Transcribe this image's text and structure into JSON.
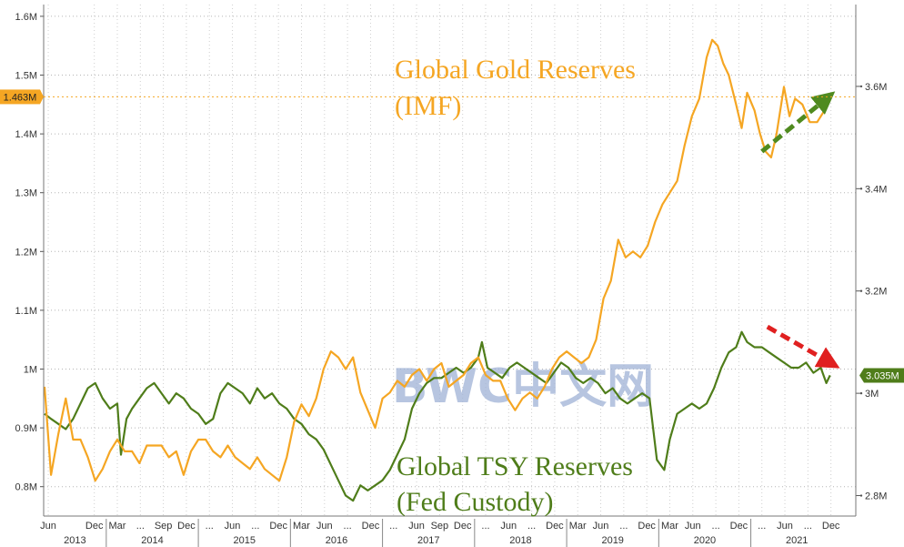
{
  "chart_data": {
    "type": "line",
    "title": "",
    "annotations": {
      "gold": [
        "Global Gold Reserves",
        "(IMF)"
      ],
      "tsy": [
        "Global TSY Reserves",
        "(Fed Custody)"
      ],
      "watermark": "BWC中文网"
    },
    "y_left": {
      "ylim": [
        0.75,
        1.62
      ],
      "ticks": [
        0.8,
        0.9,
        1.0,
        1.1,
        1.2,
        1.3,
        1.4,
        1.5,
        1.6
      ],
      "tick_labels": [
        "0.8M",
        "0.9M",
        "1M",
        "1.1M",
        "1.2M",
        "1.3M",
        "1.4M",
        "1.5M",
        "1.6M"
      ]
    },
    "y_right": {
      "ylim": [
        2.76,
        3.76
      ],
      "ticks": [
        2.8,
        3.0,
        3.2,
        3.4,
        3.6
      ],
      "tick_labels": [
        "2.8M",
        "3M",
        "3.2M",
        "3.4M",
        "3.6M"
      ]
    },
    "x": {
      "xlim": [
        2013.32,
        2022.14
      ],
      "month_ticks": [
        {
          "t": 2013.37,
          "label": "Jun"
        },
        {
          "t": 2013.87,
          "label": "Dec"
        },
        {
          "t": 2014.12,
          "label": "Mar"
        },
        {
          "t": 2014.37,
          "label": "..."
        },
        {
          "t": 2014.62,
          "label": "Sep"
        },
        {
          "t": 2014.87,
          "label": "Dec"
        },
        {
          "t": 2015.12,
          "label": "..."
        },
        {
          "t": 2015.37,
          "label": "Jun"
        },
        {
          "t": 2015.62,
          "label": "..."
        },
        {
          "t": 2015.87,
          "label": "Dec"
        },
        {
          "t": 2016.12,
          "label": "Mar"
        },
        {
          "t": 2016.37,
          "label": "Jun"
        },
        {
          "t": 2016.62,
          "label": "..."
        },
        {
          "t": 2016.87,
          "label": "Dec"
        },
        {
          "t": 2017.12,
          "label": "..."
        },
        {
          "t": 2017.37,
          "label": "Jun"
        },
        {
          "t": 2017.62,
          "label": "Sep"
        },
        {
          "t": 2017.87,
          "label": "Dec"
        },
        {
          "t": 2018.12,
          "label": "..."
        },
        {
          "t": 2018.37,
          "label": "Jun"
        },
        {
          "t": 2018.62,
          "label": "..."
        },
        {
          "t": 2018.87,
          "label": "Dec"
        },
        {
          "t": 2019.12,
          "label": "Mar"
        },
        {
          "t": 2019.37,
          "label": "Jun"
        },
        {
          "t": 2019.62,
          "label": "..."
        },
        {
          "t": 2019.87,
          "label": "Dec"
        },
        {
          "t": 2020.12,
          "label": "Mar"
        },
        {
          "t": 2020.37,
          "label": "Jun"
        },
        {
          "t": 2020.62,
          "label": "..."
        },
        {
          "t": 2020.87,
          "label": "Dec"
        },
        {
          "t": 2021.12,
          "label": "..."
        },
        {
          "t": 2021.37,
          "label": "Jun"
        },
        {
          "t": 2021.62,
          "label": "..."
        },
        {
          "t": 2021.87,
          "label": "Dec"
        }
      ],
      "years": [
        "2013",
        "2014",
        "2015",
        "2016",
        "2017",
        "2018",
        "2019",
        "2020",
        "2021"
      ]
    },
    "series": [
      {
        "name": "Global Gold Reserves (IMF)",
        "axis": "left",
        "color": "#f5a623",
        "last_value_label": "1.463M",
        "points": [
          [
            2013.33,
            0.97
          ],
          [
            2013.4,
            0.82
          ],
          [
            2013.48,
            0.89
          ],
          [
            2013.56,
            0.95
          ],
          [
            2013.64,
            0.88
          ],
          [
            2013.72,
            0.88
          ],
          [
            2013.8,
            0.85
          ],
          [
            2013.88,
            0.81
          ],
          [
            2013.96,
            0.83
          ],
          [
            2014.04,
            0.86
          ],
          [
            2014.12,
            0.88
          ],
          [
            2014.2,
            0.86
          ],
          [
            2014.28,
            0.86
          ],
          [
            2014.36,
            0.84
          ],
          [
            2014.44,
            0.87
          ],
          [
            2014.52,
            0.87
          ],
          [
            2014.6,
            0.87
          ],
          [
            2014.68,
            0.85
          ],
          [
            2014.76,
            0.86
          ],
          [
            2014.84,
            0.82
          ],
          [
            2014.92,
            0.86
          ],
          [
            2015.0,
            0.88
          ],
          [
            2015.08,
            0.88
          ],
          [
            2015.16,
            0.86
          ],
          [
            2015.24,
            0.85
          ],
          [
            2015.32,
            0.87
          ],
          [
            2015.4,
            0.85
          ],
          [
            2015.48,
            0.84
          ],
          [
            2015.56,
            0.83
          ],
          [
            2015.64,
            0.85
          ],
          [
            2015.72,
            0.83
          ],
          [
            2015.8,
            0.82
          ],
          [
            2015.88,
            0.81
          ],
          [
            2015.96,
            0.85
          ],
          [
            2016.04,
            0.91
          ],
          [
            2016.12,
            0.94
          ],
          [
            2016.2,
            0.92
          ],
          [
            2016.28,
            0.95
          ],
          [
            2016.36,
            1.0
          ],
          [
            2016.44,
            1.03
          ],
          [
            2016.52,
            1.02
          ],
          [
            2016.6,
            1.0
          ],
          [
            2016.68,
            1.02
          ],
          [
            2016.76,
            0.96
          ],
          [
            2016.84,
            0.93
          ],
          [
            2016.92,
            0.9
          ],
          [
            2017.0,
            0.95
          ],
          [
            2017.08,
            0.96
          ],
          [
            2017.16,
            0.98
          ],
          [
            2017.24,
            0.97
          ],
          [
            2017.32,
            0.99
          ],
          [
            2017.4,
            1.0
          ],
          [
            2017.48,
            0.98
          ],
          [
            2017.56,
            1.0
          ],
          [
            2017.64,
            1.01
          ],
          [
            2017.72,
            0.97
          ],
          [
            2017.8,
            0.98
          ],
          [
            2017.88,
            0.99
          ],
          [
            2017.96,
            1.01
          ],
          [
            2018.04,
            1.02
          ],
          [
            2018.12,
            0.99
          ],
          [
            2018.2,
            0.98
          ],
          [
            2018.28,
            0.98
          ],
          [
            2018.36,
            0.95
          ],
          [
            2018.44,
            0.93
          ],
          [
            2018.52,
            0.95
          ],
          [
            2018.6,
            0.96
          ],
          [
            2018.68,
            0.95
          ],
          [
            2018.76,
            0.97
          ],
          [
            2018.84,
            1.0
          ],
          [
            2018.92,
            1.02
          ],
          [
            2019.0,
            1.03
          ],
          [
            2019.08,
            1.02
          ],
          [
            2019.16,
            1.01
          ],
          [
            2019.24,
            1.02
          ],
          [
            2019.32,
            1.05
          ],
          [
            2019.4,
            1.12
          ],
          [
            2019.48,
            1.15
          ],
          [
            2019.56,
            1.22
          ],
          [
            2019.64,
            1.19
          ],
          [
            2019.72,
            1.2
          ],
          [
            2019.8,
            1.19
          ],
          [
            2019.88,
            1.21
          ],
          [
            2019.96,
            1.25
          ],
          [
            2020.04,
            1.28
          ],
          [
            2020.12,
            1.3
          ],
          [
            2020.2,
            1.32
          ],
          [
            2020.28,
            1.38
          ],
          [
            2020.36,
            1.43
          ],
          [
            2020.44,
            1.46
          ],
          [
            2020.52,
            1.53
          ],
          [
            2020.58,
            1.56
          ],
          [
            2020.64,
            1.55
          ],
          [
            2020.7,
            1.52
          ],
          [
            2020.76,
            1.5
          ],
          [
            2020.84,
            1.45
          ],
          [
            2020.9,
            1.41
          ],
          [
            2020.96,
            1.47
          ],
          [
            2021.04,
            1.44
          ],
          [
            2021.1,
            1.4
          ],
          [
            2021.16,
            1.37
          ],
          [
            2021.22,
            1.36
          ],
          [
            2021.28,
            1.4
          ],
          [
            2021.36,
            1.48
          ],
          [
            2021.42,
            1.43
          ],
          [
            2021.48,
            1.46
          ],
          [
            2021.56,
            1.45
          ],
          [
            2021.64,
            1.42
          ],
          [
            2021.72,
            1.42
          ],
          [
            2021.8,
            1.44
          ],
          [
            2021.86,
            1.463
          ]
        ]
      },
      {
        "name": "Global TSY Reserves (Fed Custody)",
        "axis": "right",
        "color": "#4f7d1a",
        "last_value_label": "3.035M",
        "points": [
          [
            2013.33,
            2.96
          ],
          [
            2013.4,
            2.95
          ],
          [
            2013.48,
            2.94
          ],
          [
            2013.56,
            2.93
          ],
          [
            2013.64,
            2.95
          ],
          [
            2013.72,
            2.98
          ],
          [
            2013.8,
            3.01
          ],
          [
            2013.88,
            3.02
          ],
          [
            2013.96,
            2.99
          ],
          [
            2014.04,
            2.97
          ],
          [
            2014.12,
            2.98
          ],
          [
            2014.16,
            2.88
          ],
          [
            2014.22,
            2.95
          ],
          [
            2014.28,
            2.97
          ],
          [
            2014.36,
            2.99
          ],
          [
            2014.44,
            3.01
          ],
          [
            2014.52,
            3.02
          ],
          [
            2014.6,
            3.0
          ],
          [
            2014.68,
            2.98
          ],
          [
            2014.76,
            3.0
          ],
          [
            2014.84,
            2.99
          ],
          [
            2014.92,
            2.97
          ],
          [
            2015.0,
            2.96
          ],
          [
            2015.08,
            2.94
          ],
          [
            2015.16,
            2.95
          ],
          [
            2015.24,
            3.0
          ],
          [
            2015.32,
            3.02
          ],
          [
            2015.4,
            3.01
          ],
          [
            2015.48,
            3.0
          ],
          [
            2015.56,
            2.98
          ],
          [
            2015.64,
            3.01
          ],
          [
            2015.72,
            2.99
          ],
          [
            2015.8,
            3.0
          ],
          [
            2015.88,
            2.98
          ],
          [
            2015.96,
            2.97
          ],
          [
            2016.04,
            2.95
          ],
          [
            2016.12,
            2.94
          ],
          [
            2016.2,
            2.92
          ],
          [
            2016.28,
            2.91
          ],
          [
            2016.36,
            2.89
          ],
          [
            2016.44,
            2.86
          ],
          [
            2016.52,
            2.83
          ],
          [
            2016.6,
            2.8
          ],
          [
            2016.68,
            2.79
          ],
          [
            2016.76,
            2.82
          ],
          [
            2016.84,
            2.81
          ],
          [
            2016.92,
            2.82
          ],
          [
            2017.0,
            2.83
          ],
          [
            2017.08,
            2.85
          ],
          [
            2017.16,
            2.88
          ],
          [
            2017.24,
            2.91
          ],
          [
            2017.32,
            2.97
          ],
          [
            2017.4,
            3.0
          ],
          [
            2017.48,
            3.02
          ],
          [
            2017.56,
            3.03
          ],
          [
            2017.64,
            3.03
          ],
          [
            2017.72,
            3.04
          ],
          [
            2017.8,
            3.05
          ],
          [
            2017.88,
            3.04
          ],
          [
            2017.96,
            3.05
          ],
          [
            2018.04,
            3.07
          ],
          [
            2018.08,
            3.1
          ],
          [
            2018.14,
            3.05
          ],
          [
            2018.22,
            3.04
          ],
          [
            2018.3,
            3.03
          ],
          [
            2018.38,
            3.05
          ],
          [
            2018.46,
            3.06
          ],
          [
            2018.54,
            3.05
          ],
          [
            2018.62,
            3.04
          ],
          [
            2018.7,
            3.03
          ],
          [
            2018.78,
            3.02
          ],
          [
            2018.86,
            3.04
          ],
          [
            2018.94,
            3.06
          ],
          [
            2019.02,
            3.05
          ],
          [
            2019.1,
            3.03
          ],
          [
            2019.18,
            3.02
          ],
          [
            2019.26,
            3.03
          ],
          [
            2019.34,
            3.02
          ],
          [
            2019.42,
            3.0
          ],
          [
            2019.5,
            3.01
          ],
          [
            2019.58,
            2.99
          ],
          [
            2019.66,
            2.98
          ],
          [
            2019.74,
            2.99
          ],
          [
            2019.82,
            3.0
          ],
          [
            2019.9,
            2.99
          ],
          [
            2019.98,
            2.87
          ],
          [
            2020.06,
            2.85
          ],
          [
            2020.12,
            2.91
          ],
          [
            2020.2,
            2.96
          ],
          [
            2020.28,
            2.97
          ],
          [
            2020.36,
            2.98
          ],
          [
            2020.44,
            2.97
          ],
          [
            2020.52,
            2.98
          ],
          [
            2020.6,
            3.01
          ],
          [
            2020.68,
            3.05
          ],
          [
            2020.76,
            3.08
          ],
          [
            2020.84,
            3.09
          ],
          [
            2020.9,
            3.12
          ],
          [
            2020.96,
            3.1
          ],
          [
            2021.04,
            3.09
          ],
          [
            2021.12,
            3.09
          ],
          [
            2021.2,
            3.08
          ],
          [
            2021.28,
            3.07
          ],
          [
            2021.36,
            3.06
          ],
          [
            2021.44,
            3.05
          ],
          [
            2021.52,
            3.05
          ],
          [
            2021.6,
            3.06
          ],
          [
            2021.68,
            3.04
          ],
          [
            2021.76,
            3.05
          ],
          [
            2021.82,
            3.02
          ],
          [
            2021.86,
            3.035
          ]
        ]
      }
    ],
    "arrows": [
      {
        "color": "#4f8a1f",
        "from": [
          2021.12,
          1.37
        ],
        "to": [
          2021.82,
          1.46
        ],
        "axis": "left"
      },
      {
        "color": "#e02020",
        "from": [
          2021.18,
          3.13
        ],
        "to": [
          2021.86,
          3.06
        ],
        "axis": "right"
      }
    ],
    "grid": true
  }
}
